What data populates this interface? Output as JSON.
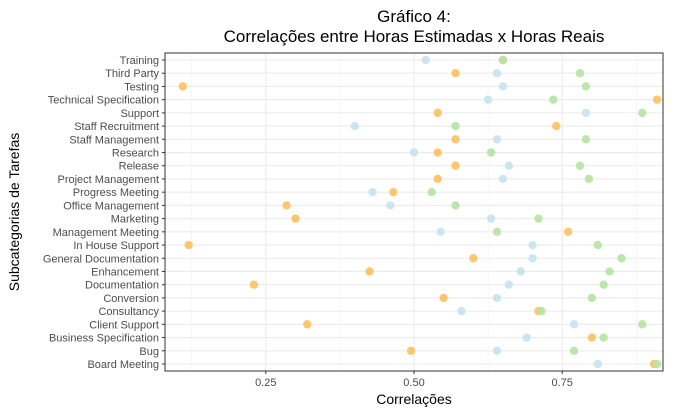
{
  "chart_data": {
    "type": "scatter",
    "title": "Gráfico 4:",
    "subtitle": "Correlações entre Horas Estimadas x Horas Reais",
    "xlabel": "Correlações",
    "ylabel": "Subcategorias de Tarefas",
    "xlim": [
      0.08,
      0.92
    ],
    "xticks": [
      0.25,
      0.5,
      0.75
    ],
    "xtick_labels": [
      "0.25",
      "0.50",
      "0.75"
    ],
    "grid": true,
    "legend": "none",
    "colors": [
      "#c6e3f0",
      "#ffc061",
      "#b6e3a3"
    ],
    "categories": [
      "Training",
      "Third Party",
      "Testing",
      "Technical Specification",
      "Support",
      "Staff Recruitment",
      "Staff Management",
      "Research",
      "Release",
      "Project Management",
      "Progress Meeting",
      "Office Management",
      "Marketing",
      "Management Meeting",
      "In House Support",
      "General Documentation",
      "Enhancement",
      "Documentation",
      "Conversion",
      "Consultancy",
      "Client Support",
      "Business Specification",
      "Bug",
      "Board Meeting"
    ],
    "series": [
      {
        "values": [
          0.52,
          0.64,
          0.65,
          0.625,
          0.79,
          0.4,
          0.64,
          0.5,
          0.66,
          0.65,
          0.43,
          0.46,
          0.63,
          0.545,
          0.7,
          0.7,
          0.68,
          0.66,
          0.64,
          0.58,
          0.77,
          0.69,
          0.64,
          0.81
        ]
      },
      {
        "values": [
          0.65,
          0.57,
          0.11,
          0.91,
          0.54,
          0.74,
          0.57,
          0.54,
          0.57,
          0.54,
          0.465,
          0.285,
          0.3,
          0.76,
          0.12,
          0.6,
          0.425,
          0.23,
          0.55,
          0.71,
          0.32,
          0.8,
          0.495,
          0.905
        ]
      },
      {
        "values": [
          0.65,
          0.78,
          0.79,
          0.735,
          0.885,
          0.57,
          0.79,
          0.63,
          0.78,
          0.795,
          0.53,
          0.57,
          0.71,
          0.64,
          0.81,
          0.85,
          0.83,
          0.82,
          0.8,
          0.715,
          0.885,
          0.82,
          0.77,
          0.91
        ]
      }
    ]
  }
}
